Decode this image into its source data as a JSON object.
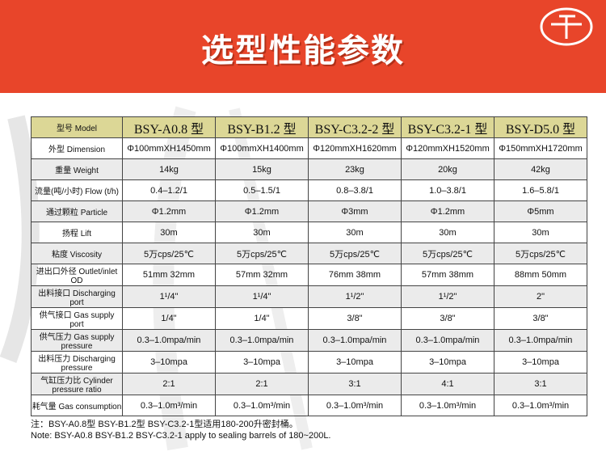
{
  "header": {
    "title": "选型性能参数",
    "brand_color": "#e8452a"
  },
  "table": {
    "header_label": "型号 Model",
    "models": [
      "BSY-A0.8 型",
      "BSY-B1.2 型",
      "BSY-C3.2-2 型",
      "BSY-C3.2-1 型",
      "BSY-D5.0 型"
    ],
    "rows": [
      {
        "label": "外型 Dimension",
        "values": [
          "Φ100mmXH1450mm",
          "Φ100mmXH1400mm",
          "Φ120mmXH1620mm",
          "Φ120mmXH1520mm",
          "Φ150mmXH1720mm"
        ]
      },
      {
        "label": "重量 Weight",
        "values": [
          "14kg",
          "15kg",
          "23kg",
          "20kg",
          "42kg"
        ]
      },
      {
        "label": "流量(吨/小时) Flow (t/h)",
        "values": [
          "0.4–1.2/1",
          "0.5–1.5/1",
          "0.8–3.8/1",
          "1.0–3.8/1",
          "1.6–5.8/1"
        ]
      },
      {
        "label": "通过颗粒 Particle",
        "values": [
          "Φ1.2mm",
          "Φ1.2mm",
          "Φ3mm",
          "Φ1.2mm",
          "Φ5mm"
        ]
      },
      {
        "label": "扬程 Lift",
        "values": [
          "30m",
          "30m",
          "30m",
          "30m",
          "30m"
        ]
      },
      {
        "label": "粘度 Viscosity",
        "values": [
          "5万cps/25℃",
          "5万cps/25℃",
          "5万cps/25℃",
          "5万cps/25℃",
          "5万cps/25℃"
        ]
      },
      {
        "label": "进出口外径 Outlet/inlet OD",
        "values": [
          "51mm  32mm",
          "57mm  32mm",
          "76mm  38mm",
          "57mm  38mm",
          "88mm  50mm"
        ]
      },
      {
        "label": "出料接口 Discharging port",
        "values": [
          "1¹/4\"",
          "1¹/4\"",
          "1¹/2\"",
          "1¹/2\"",
          "2\""
        ]
      },
      {
        "label": "供气接口 Gas supply port",
        "values": [
          "1/4\"",
          "1/4\"",
          "3/8\"",
          "3/8\"",
          "3/8\""
        ]
      },
      {
        "label": "供气压力 Gas supply pressure",
        "values": [
          "0.3–1.0mpa/min",
          "0.3–1.0mpa/min",
          "0.3–1.0mpa/min",
          "0.3–1.0mpa/min",
          "0.3–1.0mpa/min"
        ]
      },
      {
        "label": "出料压力 Discharging pressure",
        "values": [
          "3–10mpa",
          "3–10mpa",
          "3–10mpa",
          "3–10mpa",
          "3–10mpa"
        ]
      },
      {
        "label": "气缸压力比 Cylinder pressure ratio",
        "values": [
          "2:1",
          "2:1",
          "3:1",
          "4:1",
          "3:1"
        ]
      },
      {
        "label": "耗气量 Gas consumption",
        "values": [
          "0.3–1.0m³/min",
          "0.3–1.0m³/min",
          "0.3–1.0m³/min",
          "0.3–1.0m³/min",
          "0.3–1.0m³/min"
        ]
      }
    ]
  },
  "notes": {
    "cn": "注：BSY-A0.8型 BSY-B1.2型 BSY-C3.2-1型适用180-200升密封桶。",
    "en": "Note:  BSY-A0.8   BSY-B1.2   BSY-C3.2-1  apply to sealing barrels of 180~200L."
  }
}
